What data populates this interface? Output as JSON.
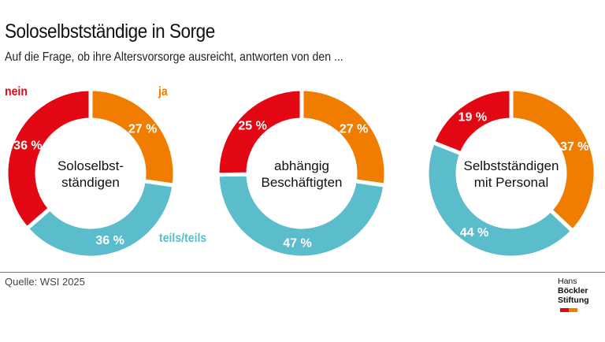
{
  "title": "Soloselbstständige in Sorge",
  "subtitle": "Auf die Frage, ob ihre Altersvorsorge ausreicht, antworten von den ...",
  "source": "Quelle: WSI 2025",
  "logo": {
    "line1_regular": "Hans",
    "line1_bold": "Böckler",
    "line2": "Stiftung"
  },
  "colors": {
    "ja": "#f07d00",
    "teils/teils": "#5bbccc",
    "nein": "#e30613"
  },
  "chart_data": [
    {
      "type": "pie",
      "donut": true,
      "center_label": [
        "Soloselbst-",
        "ständigen"
      ],
      "categories": [
        "ja",
        "teils/teils",
        "nein"
      ],
      "values": [
        27,
        36,
        36
      ],
      "legend": [
        "nein",
        "ja",
        "teils/teils"
      ]
    },
    {
      "type": "pie",
      "donut": true,
      "center_label": [
        "abhängig",
        "Beschäftigten"
      ],
      "categories": [
        "ja",
        "teils/teils",
        "nein"
      ],
      "values": [
        27,
        47,
        25
      ]
    },
    {
      "type": "pie",
      "donut": true,
      "center_label": [
        "Selbstständigen",
        "mit Personal"
      ],
      "categories": [
        "ja",
        "teils/teils",
        "nein"
      ],
      "values": [
        37,
        44,
        19
      ]
    }
  ]
}
